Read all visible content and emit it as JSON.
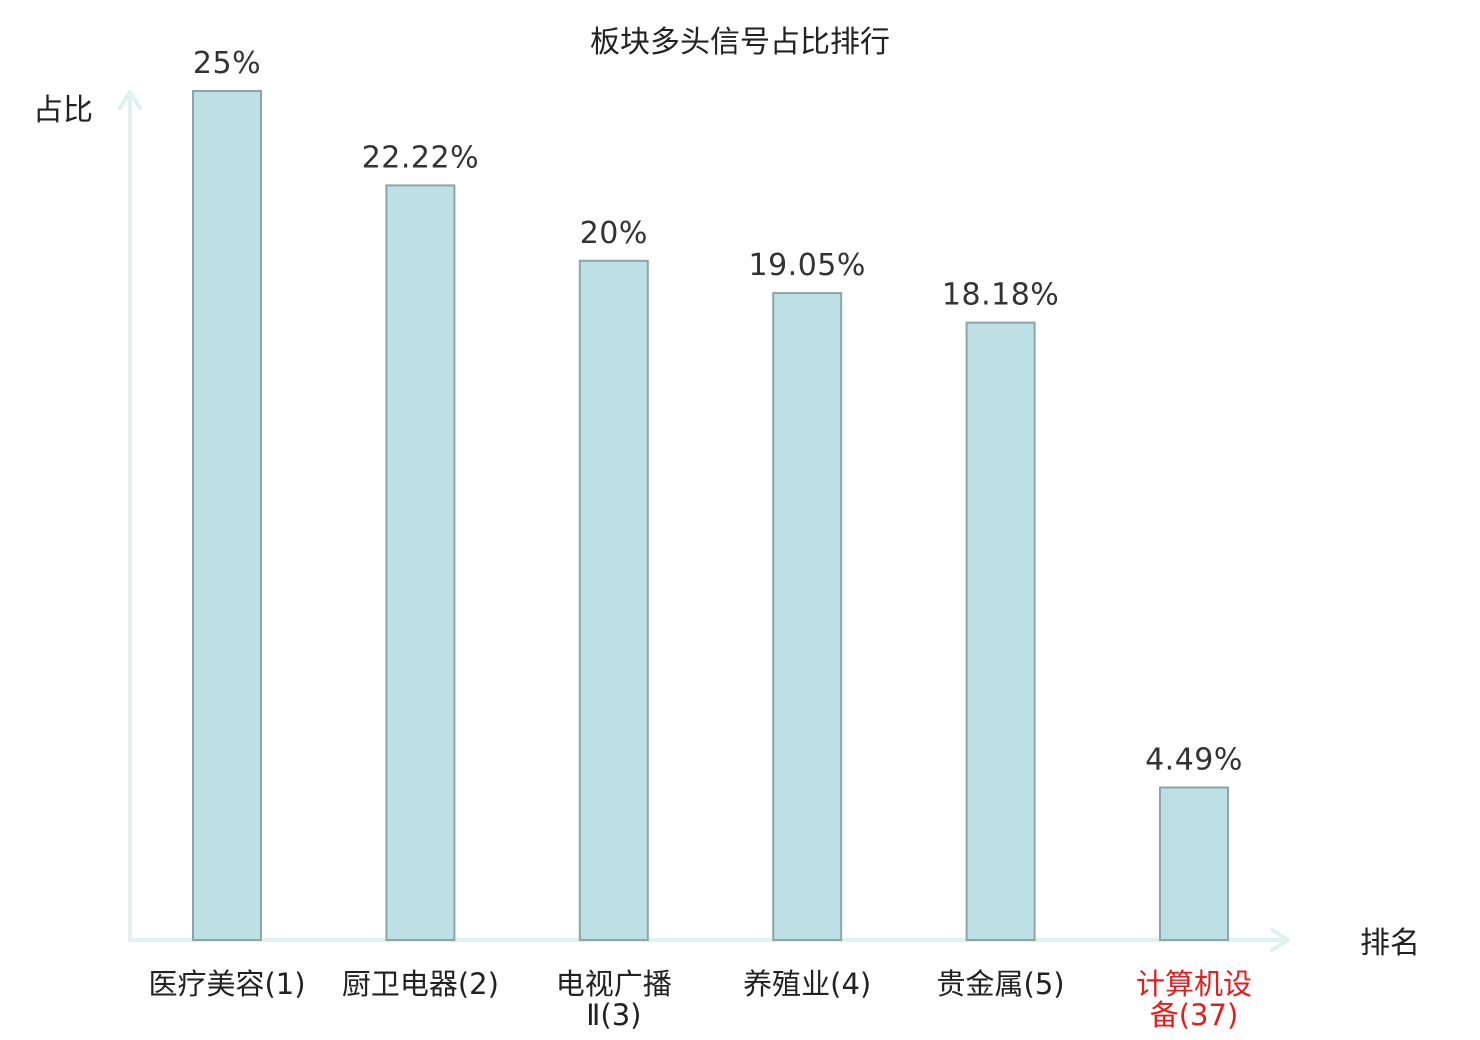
{
  "chart_data": {
    "type": "bar",
    "title": "板块多头信号占比排行",
    "xlabel": "排名",
    "ylabel": "占比",
    "categories": [
      [
        "医疗美容(1)"
      ],
      [
        "厨卫电器(2)"
      ],
      [
        "电视广播",
        "Ⅱ(3)"
      ],
      [
        "养殖业(4)"
      ],
      [
        "贵金属(5)"
      ],
      [
        "计算机设",
        "备(37)"
      ]
    ],
    "values": [
      25,
      22.22,
      20,
      19.05,
      18.18,
      4.49
    ],
    "value_labels": [
      "25%",
      "22.22%",
      "20%",
      "19.05%",
      "18.18%",
      "4.49%"
    ],
    "highlight_index": 5,
    "ylim": [
      0,
      25
    ],
    "grid": false,
    "legend": "none"
  },
  "colors": {
    "bar_fill": "#bce0e3",
    "bar_stroke": "#8aa6a9",
    "axis": "#dff2ee",
    "text": "#222222",
    "highlight_text": "#e02020"
  }
}
